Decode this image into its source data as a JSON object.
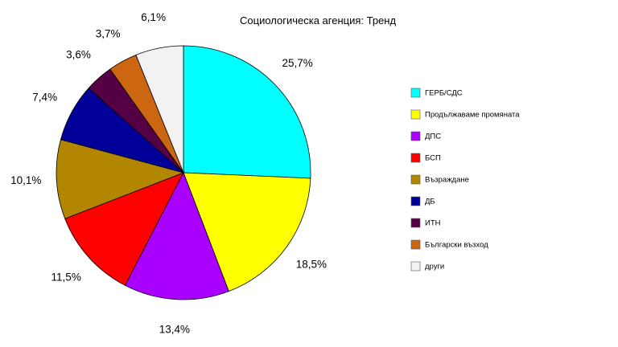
{
  "chart_data": {
    "type": "pie",
    "title": "Социологическа агенция: Тренд",
    "categories": [
      "ГЕРБ/СДС",
      "Продължаваме промяната",
      "ДПС",
      "БСП",
      "Възраждане",
      "ДБ",
      "ИТН",
      "Български възход",
      "други"
    ],
    "values": [
      25.7,
      18.5,
      13.4,
      11.5,
      10.1,
      7.4,
      3.6,
      3.7,
      6.1
    ],
    "value_labels": [
      "25,7%",
      "18,5%",
      "13,4%",
      "11,5%",
      "10,1%",
      "7,4%",
      "3,6%",
      "3,7%",
      "6,1%"
    ],
    "colors": [
      "#00FFFF",
      "#FFFF00",
      "#AA00FF",
      "#FF0000",
      "#B38600",
      "#000099",
      "#550044",
      "#CC6611",
      "#F2F2F2"
    ],
    "start_angle": "12 o'clock",
    "direction": "clockwise",
    "legend_position": "right"
  }
}
